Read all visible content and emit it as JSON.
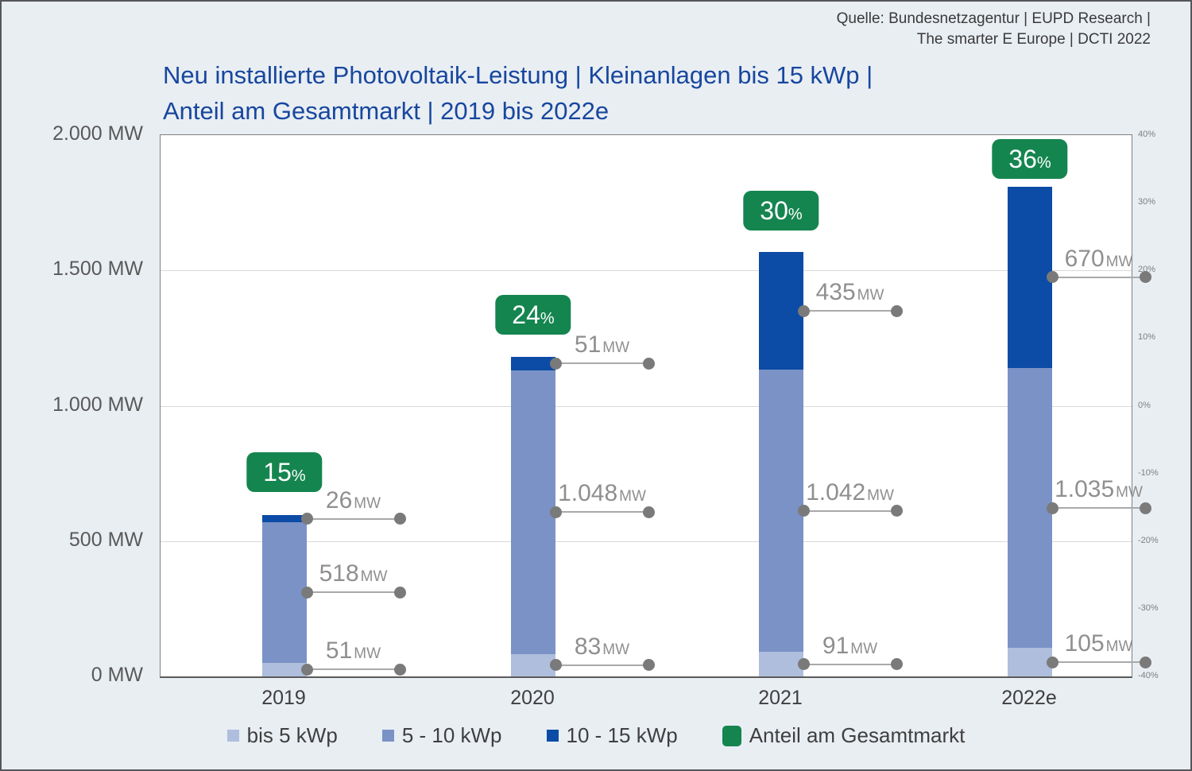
{
  "source": {
    "line1": "Quelle: Bundesnetzagentur | EUPD Research |",
    "line2": "The smarter E Europe | DCTI 2022"
  },
  "title": {
    "line1": "Neu installierte Photovoltaik-Leistung | Kleinanlagen bis 15 kWp |",
    "line2": "Anteil am Gesamtmarkt | 2019 bis 2022e"
  },
  "chart_data": {
    "type": "bar",
    "stacked": true,
    "categories": [
      "2019",
      "2020",
      "2021",
      "2022e"
    ],
    "series": [
      {
        "key": "bis-5-kwp",
        "name": "bis 5 kWp",
        "color": "#AFBEDD",
        "values": [
          51,
          83,
          91,
          105
        ],
        "labels": [
          "51",
          "83",
          "91",
          "105"
        ]
      },
      {
        "key": "5-10-kwp",
        "name": "5 - 10 kWp",
        "color": "#7B92C6",
        "values": [
          518,
          1048,
          1042,
          1035
        ],
        "labels": [
          "518",
          "1.048",
          "1.042",
          "1.035"
        ]
      },
      {
        "key": "10-15-kwp",
        "name": "10 - 15 kWp",
        "color": "#0C4BA6",
        "values": [
          26,
          51,
          435,
          670
        ],
        "labels": [
          "26",
          "51",
          "435",
          "670"
        ]
      }
    ],
    "totals_mw": [
      595,
      1182,
      1568,
      1810
    ],
    "share_series": {
      "key": "anteil-am-gesamtmarkt",
      "name": "Anteil am Gesamtmarkt",
      "color": "#15854F",
      "values_pct": [
        15,
        24,
        30,
        36
      ],
      "labels": [
        "15",
        "24",
        "30",
        "36"
      ],
      "unit": "%"
    },
    "value_unit": "MW",
    "left_axis": {
      "min_mw": 0,
      "max_mw": 2000,
      "ticks": [
        "2.000 MW",
        "1.500 MW",
        "1.000 MW",
        "500 MW",
        "0 MW"
      ]
    },
    "right_axis": {
      "min_pct": -40,
      "max_pct": 40,
      "ticks": [
        "40%",
        "30%",
        "20%",
        "10%",
        "0%",
        "-10%",
        "-20%",
        "-30%",
        "-40%"
      ]
    },
    "grid": "horizontal",
    "legend_position": "bottom"
  }
}
